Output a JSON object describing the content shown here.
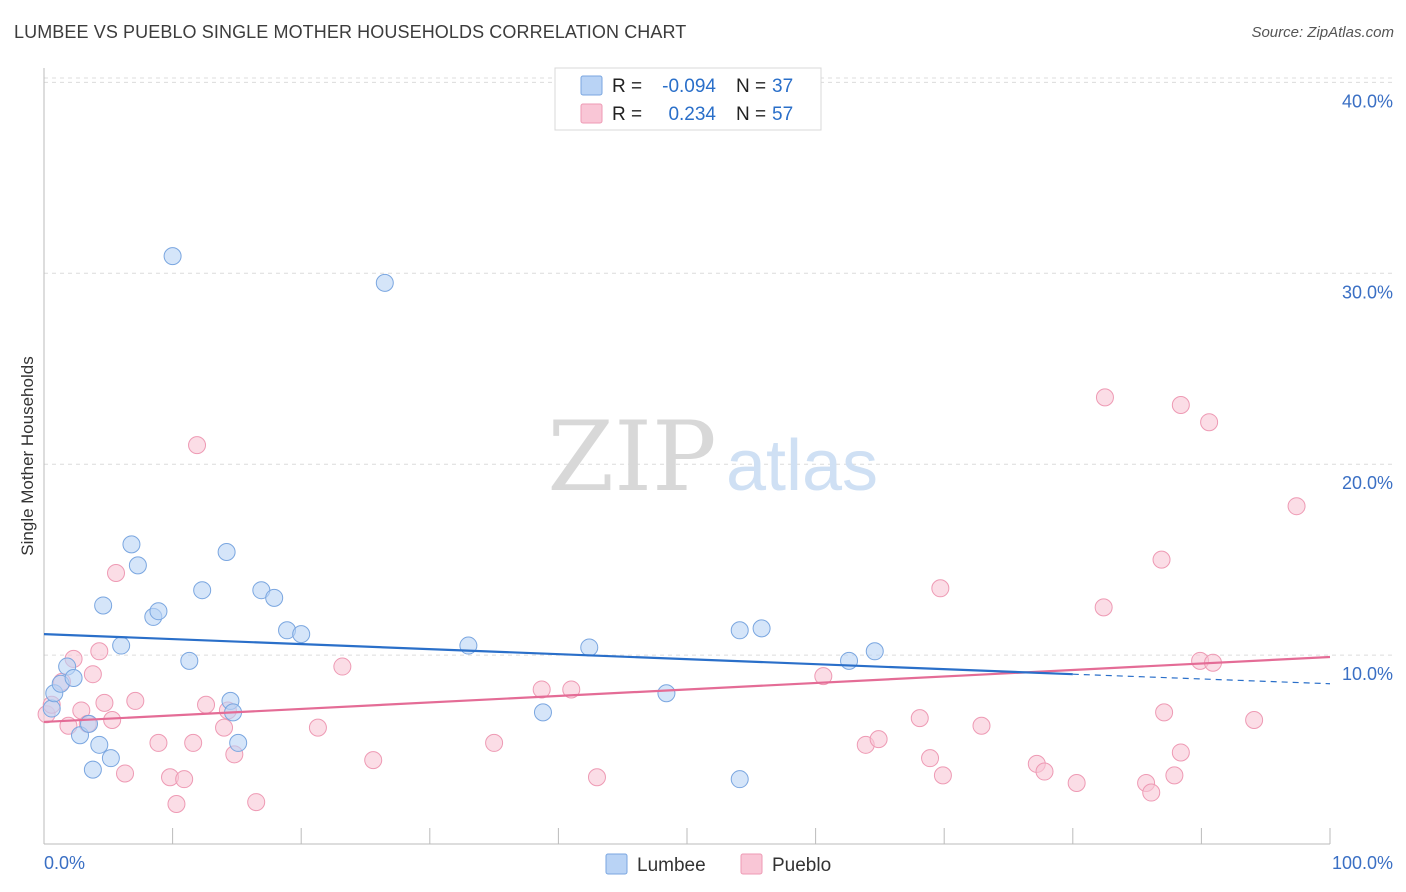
{
  "title": "LUMBEE VS PUEBLO SINGLE MOTHER HOUSEHOLDS CORRELATION CHART",
  "source": "Source: ZipAtlas.com",
  "watermark": {
    "zip": "ZIP",
    "atlas": "atlas"
  },
  "colors": {
    "lumbee_fill": "#b9d3f5",
    "lumbee_stroke": "#7aa6e0",
    "lumbee_line": "#2a6fc9",
    "pueblo_fill": "#f9c6d6",
    "pueblo_stroke": "#ee9ab4",
    "pueblo_line": "#e46c96",
    "tick_text": "#3a6fc4",
    "grid": "#dcdcdc"
  },
  "legend": {
    "lumbee": {
      "r_label": "R = ",
      "r_value": "-0.094",
      "n_label": "N = ",
      "n_value": "37"
    },
    "pueblo": {
      "r_label": "R = ",
      "r_value": "0.234",
      "n_label": "N = ",
      "n_value": "57"
    }
  },
  "bottom_legend": {
    "lumbee": "Lumbee",
    "pueblo": "Pueblo"
  },
  "chart_data": {
    "type": "scatter",
    "title": "LUMBEE VS PUEBLO SINGLE MOTHER HOUSEHOLDS CORRELATION CHART",
    "xlabel": "",
    "ylabel": "Single Mother Households",
    "xlim": [
      0,
      100
    ],
    "ylim": [
      0,
      41
    ],
    "x_tick_labels": [
      "0.0%",
      "100.0%"
    ],
    "y_ticks": [
      10,
      20,
      30,
      40
    ],
    "y_tick_labels": [
      "10.0%",
      "20.0%",
      "30.0%",
      "40.0%"
    ],
    "grid": true,
    "legend_position": "top-center",
    "series": [
      {
        "name": "Lumbee",
        "r": -0.094,
        "n": 37,
        "trend": {
          "x0": 0,
          "y0": 11.1,
          "x1": 80,
          "y1": 9.0,
          "dash_to_x": 100,
          "dash_to_y": 8.5
        },
        "points": [
          [
            0.6,
            7.2
          ],
          [
            0.8,
            8.0
          ],
          [
            1.3,
            8.5
          ],
          [
            1.8,
            9.4
          ],
          [
            2.3,
            8.8
          ],
          [
            2.8,
            5.8
          ],
          [
            3.5,
            6.4
          ],
          [
            3.8,
            4.0
          ],
          [
            4.3,
            5.3
          ],
          [
            4.6,
            12.6
          ],
          [
            5.2,
            4.6
          ],
          [
            6.0,
            10.5
          ],
          [
            6.8,
            15.8
          ],
          [
            7.3,
            14.7
          ],
          [
            8.5,
            12.0
          ],
          [
            8.9,
            12.3
          ],
          [
            10.0,
            30.9
          ],
          [
            11.3,
            9.7
          ],
          [
            12.3,
            13.4
          ],
          [
            14.2,
            15.4
          ],
          [
            14.5,
            7.6
          ],
          [
            14.7,
            7.0
          ],
          [
            15.1,
            5.4
          ],
          [
            16.9,
            13.4
          ],
          [
            17.9,
            13.0
          ],
          [
            18.9,
            11.3
          ],
          [
            20.0,
            11.1
          ],
          [
            26.5,
            29.5
          ],
          [
            33.0,
            10.5
          ],
          [
            38.8,
            7.0
          ],
          [
            42.4,
            10.4
          ],
          [
            48.4,
            8.0
          ],
          [
            54.1,
            11.3
          ],
          [
            54.1,
            3.5
          ],
          [
            55.8,
            11.4
          ],
          [
            62.6,
            9.7
          ],
          [
            64.6,
            10.2
          ]
        ]
      },
      {
        "name": "Pueblo",
        "r": 0.234,
        "n": 57,
        "trend": {
          "x0": 0,
          "y0": 6.5,
          "x1": 100,
          "y1": 9.9
        },
        "points": [
          [
            0.2,
            6.9
          ],
          [
            0.6,
            7.4
          ],
          [
            1.4,
            8.6
          ],
          [
            1.9,
            6.3
          ],
          [
            2.3,
            9.8
          ],
          [
            2.9,
            7.1
          ],
          [
            3.4,
            6.4
          ],
          [
            3.8,
            9.0
          ],
          [
            4.3,
            10.2
          ],
          [
            4.7,
            7.5
          ],
          [
            5.3,
            6.6
          ],
          [
            5.6,
            14.3
          ],
          [
            6.3,
            3.8
          ],
          [
            7.1,
            7.6
          ],
          [
            8.9,
            5.4
          ],
          [
            9.8,
            3.6
          ],
          [
            10.3,
            2.2
          ],
          [
            10.9,
            3.5
          ],
          [
            11.6,
            5.4
          ],
          [
            11.9,
            21.0
          ],
          [
            12.6,
            7.4
          ],
          [
            14.0,
            6.2
          ],
          [
            14.3,
            7.1
          ],
          [
            14.8,
            4.8
          ],
          [
            16.5,
            2.3
          ],
          [
            21.3,
            6.2
          ],
          [
            23.2,
            9.4
          ],
          [
            25.6,
            4.5
          ],
          [
            35.0,
            5.4
          ],
          [
            38.7,
            8.2
          ],
          [
            41.0,
            8.2
          ],
          [
            43.0,
            3.6
          ],
          [
            60.6,
            8.9
          ],
          [
            63.9,
            5.3
          ],
          [
            64.9,
            5.6
          ],
          [
            68.1,
            6.7
          ],
          [
            68.9,
            4.6
          ],
          [
            69.7,
            13.5
          ],
          [
            69.9,
            3.7
          ],
          [
            72.9,
            6.3
          ],
          [
            77.2,
            4.3
          ],
          [
            77.8,
            3.9
          ],
          [
            80.3,
            3.3
          ],
          [
            82.4,
            12.5
          ],
          [
            82.5,
            23.5
          ],
          [
            85.7,
            3.3
          ],
          [
            86.1,
            2.8
          ],
          [
            86.9,
            15.0
          ],
          [
            87.1,
            7.0
          ],
          [
            87.9,
            3.7
          ],
          [
            88.4,
            23.1
          ],
          [
            88.4,
            4.9
          ],
          [
            89.9,
            9.7
          ],
          [
            90.6,
            22.2
          ],
          [
            90.9,
            9.6
          ],
          [
            94.1,
            6.6
          ],
          [
            97.4,
            17.8
          ]
        ]
      }
    ]
  }
}
